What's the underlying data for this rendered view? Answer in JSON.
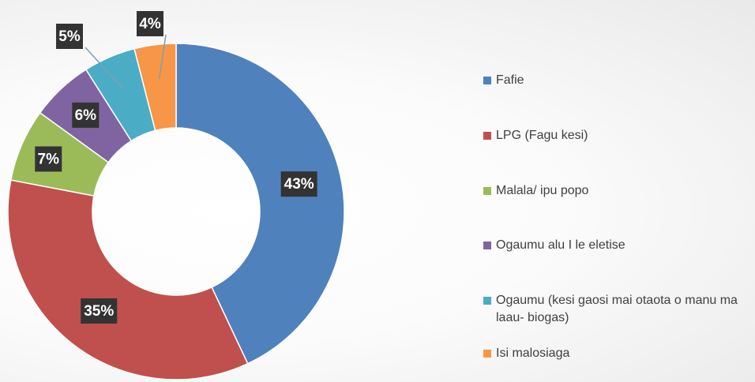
{
  "chart_data": {
    "type": "donut",
    "categories": [
      "Fafie",
      "LPG (Fagu kesi)",
      "Malala/ ipu popo",
      "Ogaumu alu I le eletise",
      "Ogaumu (kesi gaosi mai otaota o manu ma laau- biogas)",
      "Isi malosiaga"
    ],
    "values": [
      43,
      35,
      7,
      6,
      5,
      4
    ],
    "value_labels": [
      "43%",
      "35%",
      "7%",
      "6%",
      "5%",
      "4%"
    ],
    "colors": [
      "#4f81bd",
      "#c0504d",
      "#9bbb59",
      "#8064a2",
      "#4bacc6",
      "#f79646"
    ],
    "legend": "right"
  }
}
